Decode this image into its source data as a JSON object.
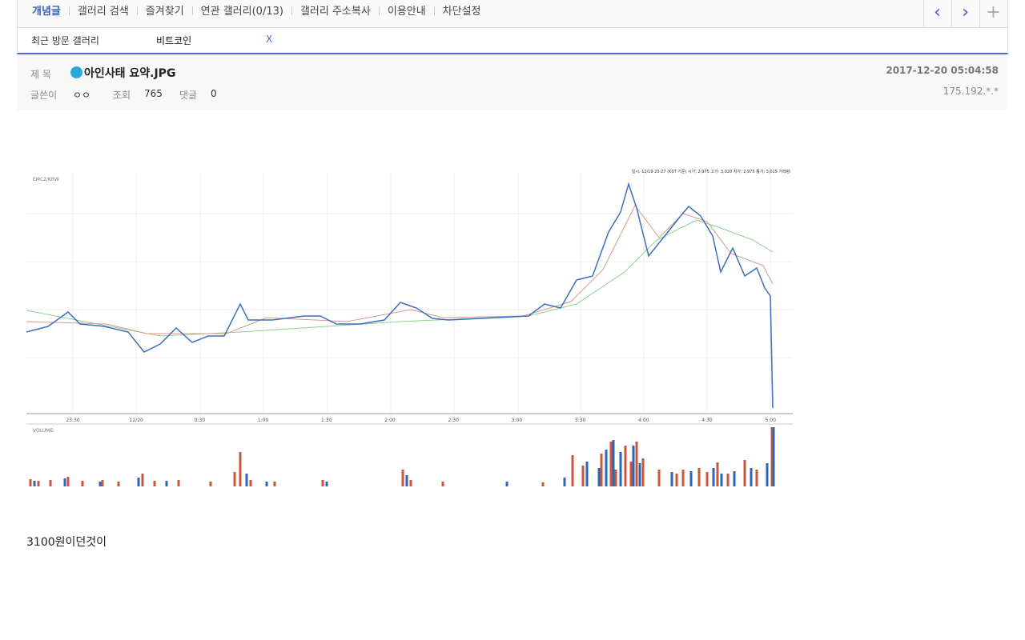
{
  "nav": {
    "items": [
      "개념글",
      "갤러리 검색",
      "즐겨찾기",
      "연관 갤러리(0/13)",
      "갤러리 주소복사",
      "이용안내",
      "차단설정"
    ]
  },
  "recent": {
    "label": "최근 방문 갤러리",
    "gallery": "비트코인",
    "close": "X"
  },
  "post": {
    "title_label": "제 목",
    "title": "아인사태 요약.JPG",
    "date": "2017-12-20 05:04:58",
    "author_label": "글쓴이",
    "author": "ㅇㅇ",
    "views_label": "조회",
    "views": "765",
    "comments_label": "댓글",
    "comments": "0",
    "ip": "175.192.*.*"
  },
  "image": {
    "symbol": "EMC2/KRW",
    "header": "일시: 12/19 23:27 (KST 기준) 시가: 2,975 고가: 3,020 저가: 2,975 종가: 3,015 거래량:",
    "time_labels": [
      "23:30",
      "12/20",
      "0:30",
      "1:00",
      "1:30",
      "2:00",
      "2:30",
      "3:00",
      "3:30",
      "4:00",
      "4:30",
      "5:00"
    ],
    "volume_label": "VOLUME"
  },
  "body": {
    "text": "3100원이던것이"
  }
}
